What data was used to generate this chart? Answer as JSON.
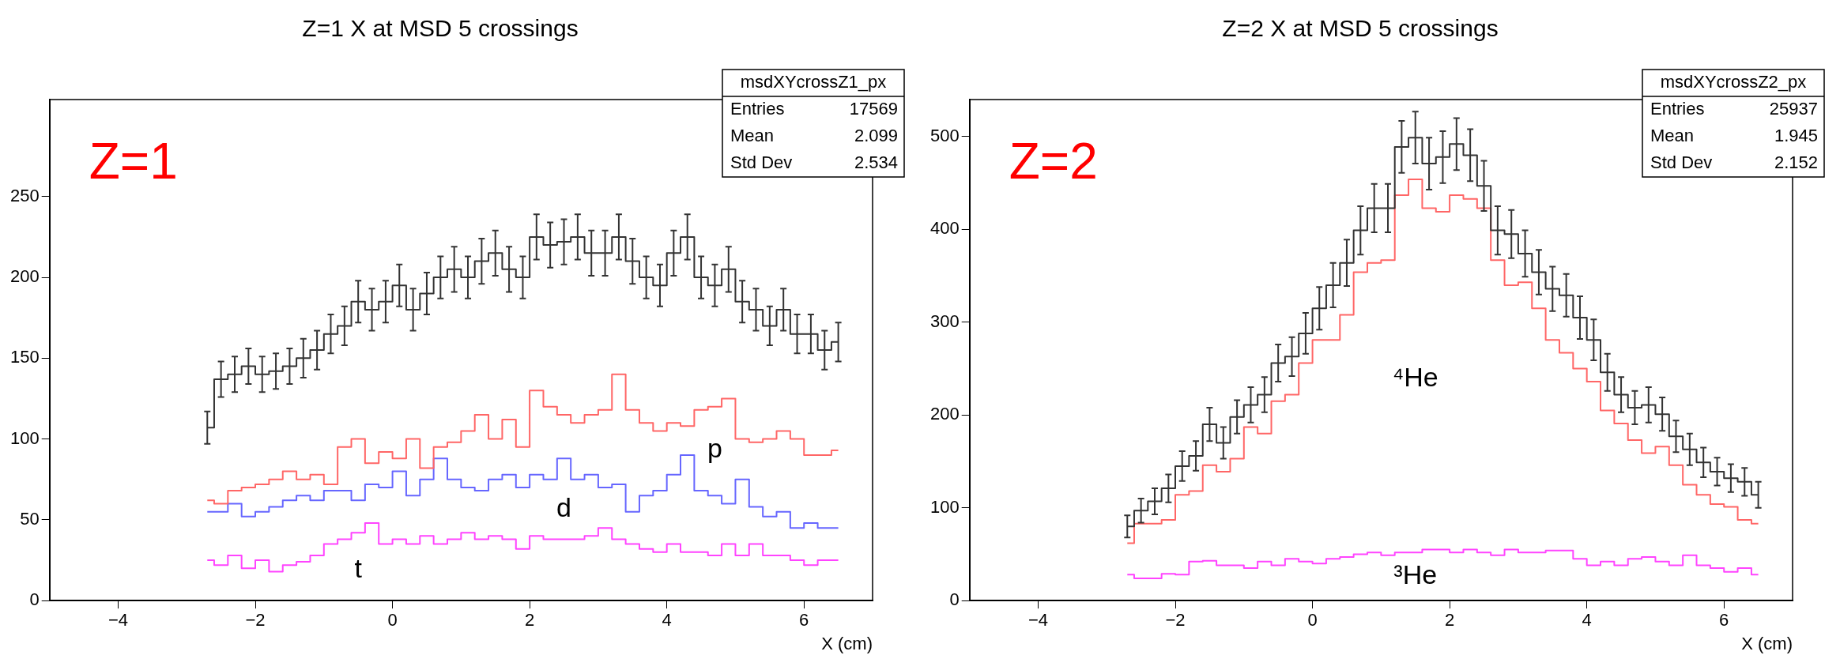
{
  "chart_data": [
    {
      "type": "step",
      "title": "Z=1 X at MSD 5 crossings",
      "xlabel": "X (cm)",
      "xlim": [
        -5,
        7
      ],
      "xticks": [
        -4,
        -2,
        0,
        2,
        4,
        6
      ],
      "ylim": [
        0,
        310
      ],
      "yticks": [
        0,
        50,
        100,
        150,
        200,
        250
      ],
      "grid": false,
      "legend": false,
      "x": [
        -2.7,
        -2.5,
        -2.3,
        -2.1,
        -1.9,
        -1.7,
        -1.5,
        -1.3,
        -1.1,
        -0.9,
        -0.7,
        -0.5,
        -0.3,
        -0.1,
        0.1,
        0.3,
        0.5,
        0.7,
        0.9,
        1.1,
        1.3,
        1.5,
        1.7,
        1.9,
        2.1,
        2.3,
        2.5,
        2.7,
        2.9,
        3.1,
        3.3,
        3.5,
        3.7,
        3.9,
        4.1,
        4.3,
        4.5,
        4.7,
        4.9,
        5.1,
        5.3,
        5.5,
        5.7,
        5.9,
        6.1,
        6.3,
        6.5
      ],
      "series": [
        {
          "type": "step",
          "color": "#333333",
          "values": [
            107,
            137,
            140,
            145,
            140,
            142,
            145,
            150,
            155,
            165,
            170,
            185,
            180,
            185,
            195,
            180,
            190,
            200,
            205,
            200,
            210,
            215,
            205,
            200,
            225,
            220,
            222,
            225,
            215,
            215,
            225,
            210,
            200,
            195,
            215,
            225,
            200,
            195,
            205,
            185,
            180,
            170,
            180,
            165,
            165,
            155,
            160
          ],
          "errors": [
            10,
            11,
            11,
            11,
            11,
            11,
            11,
            12,
            12,
            12,
            12,
            13,
            13,
            13,
            13,
            13,
            13,
            13,
            14,
            13,
            14,
            14,
            14,
            13,
            14,
            14,
            14,
            14,
            14,
            14,
            14,
            14,
            13,
            13,
            14,
            14,
            13,
            13,
            14,
            13,
            13,
            12,
            13,
            12,
            12,
            12,
            12
          ]
        },
        {
          "type": "step",
          "name": "p",
          "color": "#ff6666",
          "values": [
            62,
            60,
            68,
            70,
            72,
            75,
            80,
            75,
            78,
            72,
            95,
            100,
            85,
            92,
            88,
            100,
            82,
            95,
            98,
            105,
            115,
            100,
            112,
            95,
            130,
            120,
            115,
            110,
            115,
            118,
            140,
            118,
            110,
            105,
            110,
            108,
            118,
            120,
            125,
            100,
            98,
            100,
            105,
            100,
            90,
            90,
            93
          ]
        },
        {
          "type": "step",
          "name": "d",
          "color": "#6666ff",
          "values": [
            55,
            55,
            60,
            52,
            55,
            58,
            62,
            65,
            62,
            68,
            68,
            62,
            72,
            70,
            80,
            65,
            75,
            88,
            75,
            70,
            68,
            75,
            78,
            70,
            78,
            75,
            88,
            75,
            78,
            70,
            72,
            55,
            65,
            68,
            78,
            90,
            68,
            65,
            60,
            75,
            58,
            52,
            55,
            45,
            48,
            45,
            45
          ]
        },
        {
          "type": "step",
          "name": "t",
          "color": "#ff44ff",
          "values": [
            25,
            22,
            28,
            20,
            25,
            18,
            22,
            24,
            28,
            35,
            38,
            42,
            48,
            35,
            38,
            35,
            40,
            35,
            38,
            42,
            38,
            40,
            38,
            32,
            40,
            38,
            38,
            38,
            40,
            45,
            38,
            35,
            32,
            30,
            35,
            30,
            30,
            28,
            35,
            28,
            35,
            28,
            28,
            25,
            22,
            25,
            25
          ]
        }
      ],
      "annotations": [
        "msdXYcrossZ1_px",
        "Entries",
        "17569",
        "Mean",
        "2.099",
        "Std Dev",
        "2.534",
        "Z=1"
      ]
    },
    {
      "type": "step",
      "title": "Z=2 X at MSD 5 crossings",
      "xlabel": "X (cm)",
      "xlim": [
        -5,
        7
      ],
      "xticks": [
        -4,
        -2,
        0,
        2,
        4,
        6
      ],
      "ylim": [
        0,
        540
      ],
      "yticks": [
        0,
        100,
        200,
        300,
        400,
        500
      ],
      "grid": false,
      "legend": false,
      "x": [
        -2.7,
        -2.5,
        -2.3,
        -2.1,
        -1.9,
        -1.7,
        -1.5,
        -1.3,
        -1.1,
        -0.9,
        -0.7,
        -0.5,
        -0.3,
        -0.1,
        0.1,
        0.3,
        0.5,
        0.7,
        0.9,
        1.1,
        1.3,
        1.5,
        1.7,
        1.9,
        2.1,
        2.3,
        2.5,
        2.7,
        2.9,
        3.1,
        3.3,
        3.5,
        3.7,
        3.9,
        4.1,
        4.3,
        4.5,
        4.7,
        4.9,
        5.1,
        5.3,
        5.5,
        5.7,
        5.9,
        6.1,
        6.3,
        6.5
      ],
      "series": [
        {
          "type": "step",
          "color": "#333333",
          "values": [
            80,
            97,
            107,
            121,
            145,
            156,
            190,
            170,
            198,
            211,
            222,
            256,
            263,
            288,
            315,
            340,
            364,
            399,
            423,
            423,
            489,
            499,
            471,
            478,
            492,
            480,
            447,
            399,
            395,
            374,
            354,
            336,
            329,
            305,
            281,
            246,
            222,
            208,
            211,
            201,
            177,
            163,
            149,
            139,
            132,
            128,
            114
          ],
          "errors": [
            12,
            13,
            14,
            15,
            16,
            16,
            18,
            17,
            18,
            19,
            19,
            20,
            21,
            22,
            23,
            24,
            25,
            26,
            26,
            26,
            28,
            28,
            28,
            28,
            28,
            28,
            27,
            26,
            26,
            25,
            24,
            24,
            23,
            23,
            22,
            20,
            19,
            18,
            19,
            18,
            17,
            17,
            16,
            15,
            15,
            15,
            14
          ]
        },
        {
          "type": "step",
          "name": "⁴He",
          "color": "#ff6666",
          "values": [
            62,
            83,
            83,
            87,
            114,
            118,
            146,
            139,
            153,
            187,
            180,
            215,
            222,
            256,
            281,
            281,
            308,
            354,
            364,
            367,
            437,
            454,
            423,
            419,
            437,
            433,
            423,
            367,
            340,
            343,
            315,
            281,
            267,
            250,
            236,
            205,
            191,
            173,
            159,
            166,
            146,
            125,
            114,
            104,
            101,
            87,
            83
          ]
        },
        {
          "type": "step",
          "name": "³He",
          "color": "#ff44ff",
          "values": [
            28,
            24,
            24,
            29,
            28,
            42,
            43,
            38,
            38,
            35,
            42,
            38,
            45,
            42,
            40,
            45,
            47,
            50,
            52,
            49,
            52,
            52,
            55,
            55,
            52,
            55,
            52,
            49,
            55,
            52,
            52,
            54,
            54,
            45,
            38,
            42,
            38,
            45,
            47,
            42,
            38,
            49,
            38,
            35,
            31,
            35,
            28
          ]
        }
      ],
      "annotations": [
        "msdXYcrossZ2_px",
        "Entries",
        "25937",
        "Mean",
        "1.945",
        "Std Dev",
        "2.152",
        "Z=2"
      ]
    }
  ]
}
